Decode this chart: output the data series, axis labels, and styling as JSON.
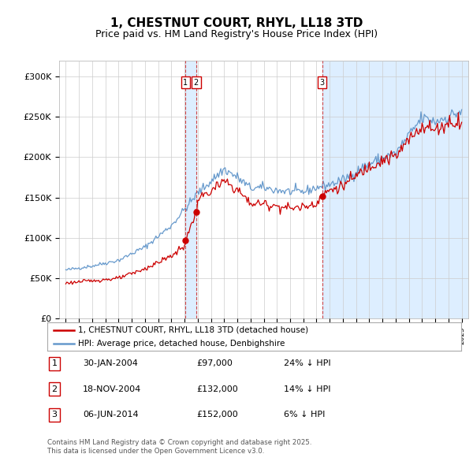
{
  "title": "1, CHESTNUT COURT, RHYL, LL18 3TD",
  "subtitle": "Price paid vs. HM Land Registry's House Price Index (HPI)",
  "legend_line1": "1, CHESTNUT COURT, RHYL, LL18 3TD (detached house)",
  "legend_line2": "HPI: Average price, detached house, Denbighshire",
  "footer1": "Contains HM Land Registry data © Crown copyright and database right 2025.",
  "footer2": "This data is licensed under the Open Government Licence v3.0.",
  "sales": [
    {
      "num": 1,
      "date_label": "30-JAN-2004",
      "price": 97000,
      "pct": "24% ↓ HPI",
      "date_x": 2004.08
    },
    {
      "num": 2,
      "date_label": "18-NOV-2004",
      "price": 132000,
      "pct": "14% ↓ HPI",
      "date_x": 2004.88
    },
    {
      "num": 3,
      "date_label": "06-JUN-2014",
      "price": 152000,
      "pct": "6% ↓ HPI",
      "date_x": 2014.43
    }
  ],
  "ylim": [
    0,
    320000
  ],
  "xlim": [
    1994.5,
    2025.5
  ],
  "yticks": [
    0,
    50000,
    100000,
    150000,
    200000,
    250000,
    300000
  ],
  "ytick_labels": [
    "£0",
    "£50K",
    "£100K",
    "£150K",
    "£200K",
    "£250K",
    "£300K"
  ],
  "red_line_color": "#cc0000",
  "blue_line_color": "#6699cc",
  "shade_color": "#ddeeff",
  "grid_color": "#cccccc",
  "bg_color": "#ffffff",
  "sale_vline_color": "#cc3333",
  "sale_marker_color": "#cc0000",
  "sale_label_border": "#cc0000"
}
